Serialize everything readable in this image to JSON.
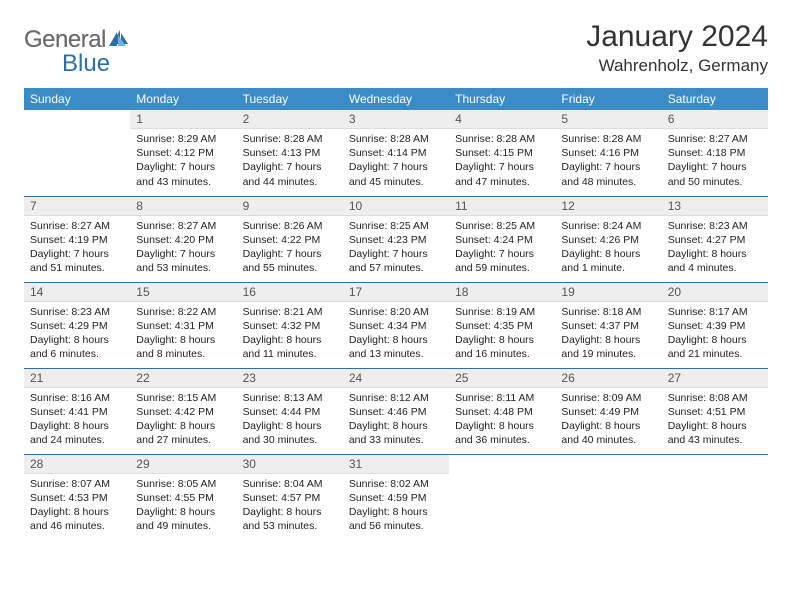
{
  "logo": {
    "gray": "General",
    "blue": "Blue"
  },
  "title": "January 2024",
  "location": "Wahrenholz, Germany",
  "colors": {
    "header_bg": "#3b8bc7",
    "header_text": "#ffffff",
    "daynum_bg": "#eeeeee",
    "row_border": "#2b6fa8",
    "logo_gray": "#6b6b6b",
    "logo_blue": "#2b6fa8",
    "body_text": "#222222"
  },
  "day_headers": [
    "Sunday",
    "Monday",
    "Tuesday",
    "Wednesday",
    "Thursday",
    "Friday",
    "Saturday"
  ],
  "weeks": [
    [
      {
        "n": "",
        "sr": "",
        "ss": "",
        "dl": ""
      },
      {
        "n": "1",
        "sr": "Sunrise: 8:29 AM",
        "ss": "Sunset: 4:12 PM",
        "dl": "Daylight: 7 hours and 43 minutes."
      },
      {
        "n": "2",
        "sr": "Sunrise: 8:28 AM",
        "ss": "Sunset: 4:13 PM",
        "dl": "Daylight: 7 hours and 44 minutes."
      },
      {
        "n": "3",
        "sr": "Sunrise: 8:28 AM",
        "ss": "Sunset: 4:14 PM",
        "dl": "Daylight: 7 hours and 45 minutes."
      },
      {
        "n": "4",
        "sr": "Sunrise: 8:28 AM",
        "ss": "Sunset: 4:15 PM",
        "dl": "Daylight: 7 hours and 47 minutes."
      },
      {
        "n": "5",
        "sr": "Sunrise: 8:28 AM",
        "ss": "Sunset: 4:16 PM",
        "dl": "Daylight: 7 hours and 48 minutes."
      },
      {
        "n": "6",
        "sr": "Sunrise: 8:27 AM",
        "ss": "Sunset: 4:18 PM",
        "dl": "Daylight: 7 hours and 50 minutes."
      }
    ],
    [
      {
        "n": "7",
        "sr": "Sunrise: 8:27 AM",
        "ss": "Sunset: 4:19 PM",
        "dl": "Daylight: 7 hours and 51 minutes."
      },
      {
        "n": "8",
        "sr": "Sunrise: 8:27 AM",
        "ss": "Sunset: 4:20 PM",
        "dl": "Daylight: 7 hours and 53 minutes."
      },
      {
        "n": "9",
        "sr": "Sunrise: 8:26 AM",
        "ss": "Sunset: 4:22 PM",
        "dl": "Daylight: 7 hours and 55 minutes."
      },
      {
        "n": "10",
        "sr": "Sunrise: 8:25 AM",
        "ss": "Sunset: 4:23 PM",
        "dl": "Daylight: 7 hours and 57 minutes."
      },
      {
        "n": "11",
        "sr": "Sunrise: 8:25 AM",
        "ss": "Sunset: 4:24 PM",
        "dl": "Daylight: 7 hours and 59 minutes."
      },
      {
        "n": "12",
        "sr": "Sunrise: 8:24 AM",
        "ss": "Sunset: 4:26 PM",
        "dl": "Daylight: 8 hours and 1 minute."
      },
      {
        "n": "13",
        "sr": "Sunrise: 8:23 AM",
        "ss": "Sunset: 4:27 PM",
        "dl": "Daylight: 8 hours and 4 minutes."
      }
    ],
    [
      {
        "n": "14",
        "sr": "Sunrise: 8:23 AM",
        "ss": "Sunset: 4:29 PM",
        "dl": "Daylight: 8 hours and 6 minutes."
      },
      {
        "n": "15",
        "sr": "Sunrise: 8:22 AM",
        "ss": "Sunset: 4:31 PM",
        "dl": "Daylight: 8 hours and 8 minutes."
      },
      {
        "n": "16",
        "sr": "Sunrise: 8:21 AM",
        "ss": "Sunset: 4:32 PM",
        "dl": "Daylight: 8 hours and 11 minutes."
      },
      {
        "n": "17",
        "sr": "Sunrise: 8:20 AM",
        "ss": "Sunset: 4:34 PM",
        "dl": "Daylight: 8 hours and 13 minutes."
      },
      {
        "n": "18",
        "sr": "Sunrise: 8:19 AM",
        "ss": "Sunset: 4:35 PM",
        "dl": "Daylight: 8 hours and 16 minutes."
      },
      {
        "n": "19",
        "sr": "Sunrise: 8:18 AM",
        "ss": "Sunset: 4:37 PM",
        "dl": "Daylight: 8 hours and 19 minutes."
      },
      {
        "n": "20",
        "sr": "Sunrise: 8:17 AM",
        "ss": "Sunset: 4:39 PM",
        "dl": "Daylight: 8 hours and 21 minutes."
      }
    ],
    [
      {
        "n": "21",
        "sr": "Sunrise: 8:16 AM",
        "ss": "Sunset: 4:41 PM",
        "dl": "Daylight: 8 hours and 24 minutes."
      },
      {
        "n": "22",
        "sr": "Sunrise: 8:15 AM",
        "ss": "Sunset: 4:42 PM",
        "dl": "Daylight: 8 hours and 27 minutes."
      },
      {
        "n": "23",
        "sr": "Sunrise: 8:13 AM",
        "ss": "Sunset: 4:44 PM",
        "dl": "Daylight: 8 hours and 30 minutes."
      },
      {
        "n": "24",
        "sr": "Sunrise: 8:12 AM",
        "ss": "Sunset: 4:46 PM",
        "dl": "Daylight: 8 hours and 33 minutes."
      },
      {
        "n": "25",
        "sr": "Sunrise: 8:11 AM",
        "ss": "Sunset: 4:48 PM",
        "dl": "Daylight: 8 hours and 36 minutes."
      },
      {
        "n": "26",
        "sr": "Sunrise: 8:09 AM",
        "ss": "Sunset: 4:49 PM",
        "dl": "Daylight: 8 hours and 40 minutes."
      },
      {
        "n": "27",
        "sr": "Sunrise: 8:08 AM",
        "ss": "Sunset: 4:51 PM",
        "dl": "Daylight: 8 hours and 43 minutes."
      }
    ],
    [
      {
        "n": "28",
        "sr": "Sunrise: 8:07 AM",
        "ss": "Sunset: 4:53 PM",
        "dl": "Daylight: 8 hours and 46 minutes."
      },
      {
        "n": "29",
        "sr": "Sunrise: 8:05 AM",
        "ss": "Sunset: 4:55 PM",
        "dl": "Daylight: 8 hours and 49 minutes."
      },
      {
        "n": "30",
        "sr": "Sunrise: 8:04 AM",
        "ss": "Sunset: 4:57 PM",
        "dl": "Daylight: 8 hours and 53 minutes."
      },
      {
        "n": "31",
        "sr": "Sunrise: 8:02 AM",
        "ss": "Sunset: 4:59 PM",
        "dl": "Daylight: 8 hours and 56 minutes."
      },
      {
        "n": "",
        "sr": "",
        "ss": "",
        "dl": ""
      },
      {
        "n": "",
        "sr": "",
        "ss": "",
        "dl": ""
      },
      {
        "n": "",
        "sr": "",
        "ss": "",
        "dl": ""
      }
    ]
  ]
}
